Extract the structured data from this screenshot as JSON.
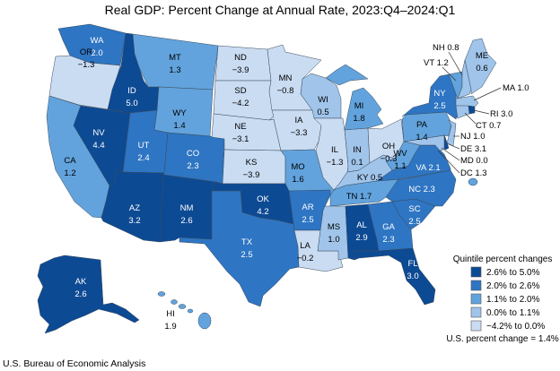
{
  "title": "Real GDP: Percent Change at Annual Rate, 2023:Q4–2024:Q1",
  "credit": "U.S. Bureau of Economic Analysis",
  "legend": {
    "title": "Quintile percent changes",
    "bins": [
      {
        "label": "2.6% to 5.0%",
        "color": "#0d4a94"
      },
      {
        "label": "2.0% to 2.6%",
        "color": "#2e75c3"
      },
      {
        "label": "1.1% to 2.0%",
        "color": "#62a3dd"
      },
      {
        "label": "0.0% to 1.1%",
        "color": "#a0c4ea"
      },
      {
        "label": "−4.2% to 0.0%",
        "color": "#cadcf2"
      }
    ],
    "us_change": "U.S. percent change = 1.4%"
  },
  "states": {
    "WA": {
      "code": "WA",
      "value": "2.0",
      "bin": 1
    },
    "OR": {
      "code": "OR",
      "value": "−1.3",
      "bin": 4
    },
    "CA": {
      "code": "CA",
      "value": "1.2",
      "bin": 2
    },
    "NV": {
      "code": "NV",
      "value": "4.4",
      "bin": 0
    },
    "ID": {
      "code": "ID",
      "value": "5.0",
      "bin": 0
    },
    "MT": {
      "code": "MT",
      "value": "1.3",
      "bin": 2
    },
    "WY": {
      "code": "WY",
      "value": "1.4",
      "bin": 2
    },
    "UT": {
      "code": "UT",
      "value": "2.4",
      "bin": 1
    },
    "CO": {
      "code": "CO",
      "value": "2.3",
      "bin": 1
    },
    "AZ": {
      "code": "AZ",
      "value": "3.2",
      "bin": 0
    },
    "NM": {
      "code": "NM",
      "value": "2.6",
      "bin": 0
    },
    "ND": {
      "code": "ND",
      "value": "−3.9",
      "bin": 4
    },
    "SD": {
      "code": "SD",
      "value": "−4.2",
      "bin": 4
    },
    "NE": {
      "code": "NE",
      "value": "−3.1",
      "bin": 4
    },
    "KS": {
      "code": "KS",
      "value": "−3.9",
      "bin": 4
    },
    "OK": {
      "code": "OK",
      "value": "4.2",
      "bin": 0
    },
    "TX": {
      "code": "TX",
      "value": "2.5",
      "bin": 1
    },
    "MN": {
      "code": "MN",
      "value": "−0.8",
      "bin": 4
    },
    "IA": {
      "code": "IA",
      "value": "−3.3",
      "bin": 4
    },
    "MO": {
      "code": "MO",
      "value": "1.6",
      "bin": 2
    },
    "AR": {
      "code": "AR",
      "value": "2.5",
      "bin": 1
    },
    "LA": {
      "code": "LA",
      "value": "−0.2",
      "bin": 4
    },
    "WI": {
      "code": "WI",
      "value": "0.5",
      "bin": 3
    },
    "IL": {
      "code": "IL",
      "value": "−1.3",
      "bin": 4
    },
    "MI": {
      "code": "MI",
      "value": "1.8",
      "bin": 2
    },
    "IN": {
      "code": "IN",
      "value": "0.1",
      "bin": 3
    },
    "OH": {
      "code": "OH",
      "value": "−0.3",
      "bin": 4
    },
    "KY": {
      "code": "KY",
      "value": "0.5",
      "bin": 3
    },
    "TN": {
      "code": "TN",
      "value": "1.7",
      "bin": 2
    },
    "MS": {
      "code": "MS",
      "value": "1.0",
      "bin": 3
    },
    "AL": {
      "code": "AL",
      "value": "2.9",
      "bin": 0
    },
    "GA": {
      "code": "GA",
      "value": "2.3",
      "bin": 1
    },
    "FL": {
      "code": "FL",
      "value": "3.0",
      "bin": 0
    },
    "SC": {
      "code": "SC",
      "value": "2.5",
      "bin": 1
    },
    "NC": {
      "code": "NC",
      "value": "2.3",
      "bin": 1
    },
    "VA": {
      "code": "VA",
      "value": "2.1",
      "bin": 1
    },
    "WV": {
      "code": "WV",
      "value": "1.1",
      "bin": 2
    },
    "PA": {
      "code": "PA",
      "value": "1.4",
      "bin": 2
    },
    "NY": {
      "code": "NY",
      "value": "2.5",
      "bin": 1
    },
    "VT": {
      "code": "VT",
      "value": "1.2",
      "bin": 2
    },
    "NH": {
      "code": "NH",
      "value": "0.8",
      "bin": 3
    },
    "ME": {
      "code": "ME",
      "value": "0.6",
      "bin": 3
    },
    "MA": {
      "code": "MA",
      "value": "1.0",
      "bin": 3
    },
    "RI": {
      "code": "RI",
      "value": "3.0",
      "bin": 0
    },
    "CT": {
      "code": "CT",
      "value": "0.7",
      "bin": 3
    },
    "NJ": {
      "code": "NJ",
      "value": "1.0",
      "bin": 3
    },
    "DE": {
      "code": "DE",
      "value": "3.1",
      "bin": 0
    },
    "MD": {
      "code": "MD",
      "value": "0.0",
      "bin": 3
    },
    "DC": {
      "code": "DC",
      "value": "1.3",
      "bin": 2
    },
    "AK": {
      "code": "AK",
      "value": "2.6",
      "bin": 0
    },
    "HI": {
      "code": "HI",
      "value": "1.9",
      "bin": 2
    }
  }
}
